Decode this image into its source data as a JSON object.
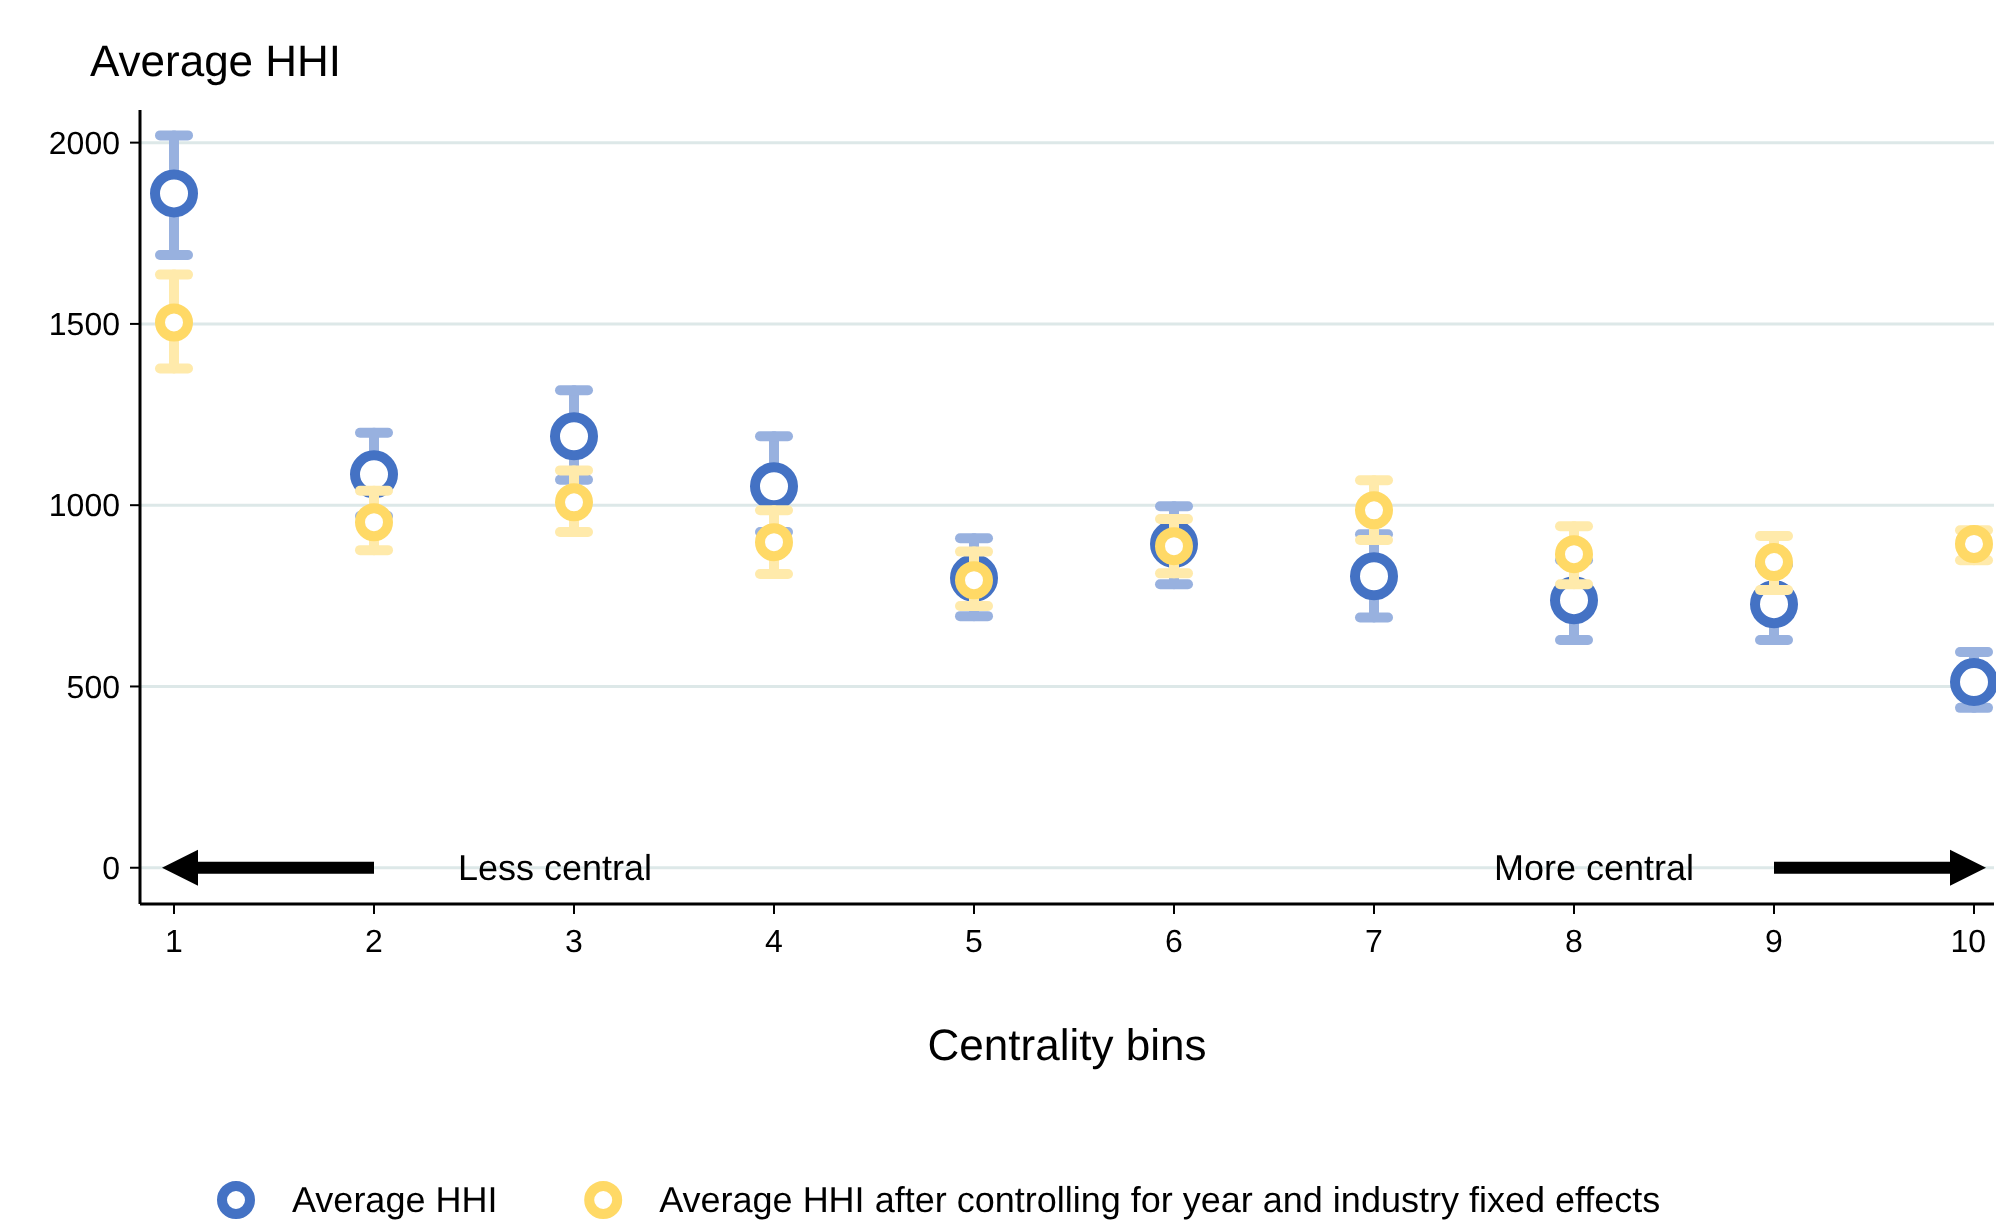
{
  "chart_data": {
    "type": "scatter",
    "ylabel": "Average HHI",
    "xlabel": "Centrality bins",
    "x": [
      1,
      2,
      3,
      4,
      5,
      6,
      7,
      8,
      9,
      10
    ],
    "series": [
      {
        "name": "Average HHI",
        "color": "#4472c4",
        "values": [
          1860,
          1085,
          1190,
          1052,
          799,
          893,
          804,
          738,
          727,
          512
        ],
        "errors": [
          [
            1690,
            2020
          ],
          [
            970,
            1200
          ],
          [
            1070,
            1317
          ],
          [
            926,
            1190
          ],
          [
            694,
            909
          ],
          [
            782,
            997
          ],
          [
            690,
            920
          ],
          [
            628,
            848
          ],
          [
            628,
            835
          ],
          [
            441,
            595
          ]
        ]
      },
      {
        "name": "Average HHI after controlling for year and industry fixed effects",
        "color": "#ffd966",
        "values": [
          1504,
          953,
          1008,
          898,
          793,
          887,
          986,
          865,
          843,
          893
        ],
        "errors": [
          [
            1377,
            1636
          ],
          [
            876,
            1040
          ],
          [
            926,
            1096
          ],
          [
            810,
            986
          ],
          [
            722,
            872
          ],
          [
            812,
            962
          ],
          [
            904,
            1069
          ],
          [
            782,
            942
          ],
          [
            766,
            915
          ],
          [
            848,
            931
          ]
        ]
      }
    ],
    "xlim": [
      0.83,
      10.1
    ],
    "xticks": [
      1,
      2,
      3,
      4,
      5,
      6,
      7,
      8,
      9,
      10
    ],
    "ylim": [
      -100,
      2090
    ],
    "yticks": [
      0,
      500,
      1000,
      1500,
      2000
    ],
    "grid": "y",
    "legend": "bottom",
    "marker": "circle",
    "annotations": [
      "Less central",
      "More central"
    ]
  }
}
